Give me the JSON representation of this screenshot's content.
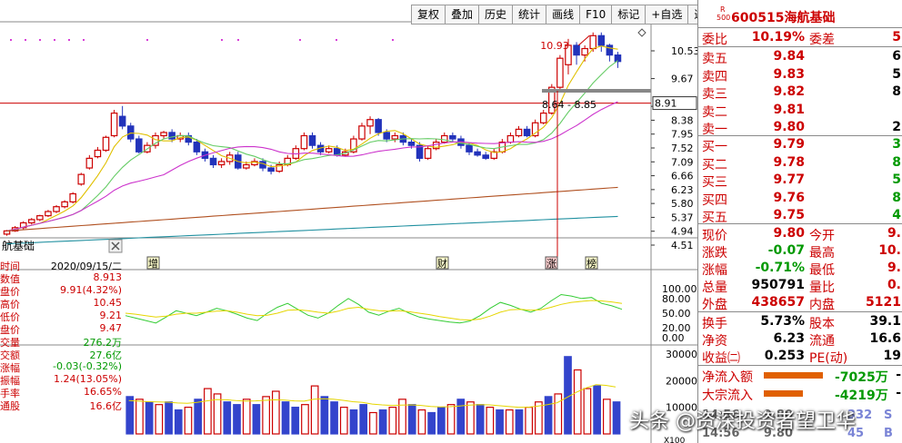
{
  "toolbar": {
    "buttons": [
      "复权",
      "叠加",
      "历史",
      "统计",
      "画线",
      "F10",
      "标记",
      "+自选",
      "返回"
    ]
  },
  "stock": {
    "code": "600515",
    "name": "海航基础",
    "rs_r": "R",
    "rs_num": "500",
    "chart_label": "航基础"
  },
  "chart_data": [
    {
      "type": "candlestick",
      "title": "",
      "y_ticks": [
        "10.53",
        "9.67",
        "8.81",
        "8.38",
        "7.95",
        "7.52",
        "7.09",
        "6.66",
        "6.23",
        "5.80",
        "5.37",
        "4.94",
        "4.51"
      ],
      "current_price_label": "8.91",
      "annotation_high": "10.93",
      "annotation_range": "8.64 - 8.85",
      "event_tags": [
        "增",
        "财",
        "涨",
        "榜"
      ],
      "candles": [
        [
          4.85,
          4.95,
          4.8,
          4.98
        ],
        [
          4.95,
          5.05,
          4.92,
          5.1
        ],
        [
          5.05,
          5.2,
          5.0,
          5.25
        ],
        [
          5.2,
          5.3,
          5.15,
          5.35
        ],
        [
          5.3,
          5.42,
          5.25,
          5.45
        ],
        [
          5.42,
          5.55,
          5.38,
          5.6
        ],
        [
          5.55,
          5.7,
          5.5,
          5.75
        ],
        [
          5.7,
          5.85,
          5.65,
          5.9
        ],
        [
          5.85,
          6.1,
          5.8,
          6.15
        ],
        [
          6.4,
          6.7,
          6.35,
          6.75
        ],
        [
          6.9,
          7.2,
          6.85,
          7.3
        ],
        [
          7.25,
          7.45,
          7.2,
          7.55
        ],
        [
          7.45,
          7.85,
          7.4,
          7.9
        ],
        [
          7.9,
          8.6,
          7.85,
          8.7
        ],
        [
          8.5,
          8.2,
          8.1,
          8.82
        ],
        [
          8.2,
          7.8,
          7.7,
          8.3
        ],
        [
          7.8,
          7.4,
          7.35,
          7.9
        ],
        [
          7.4,
          7.6,
          7.35,
          7.7
        ],
        [
          7.6,
          7.9,
          7.5,
          8.0
        ],
        [
          7.9,
          8.0,
          7.8,
          8.05
        ],
        [
          8.0,
          7.8,
          7.7,
          8.1
        ],
        [
          7.8,
          7.9,
          7.7,
          8.0
        ],
        [
          7.9,
          7.7,
          7.6,
          8.0
        ],
        [
          7.7,
          7.4,
          7.3,
          7.8
        ],
        [
          7.4,
          7.2,
          7.1,
          7.5
        ],
        [
          7.2,
          7.0,
          6.9,
          7.3
        ],
        [
          7.0,
          7.1,
          6.9,
          7.2
        ],
        [
          7.1,
          7.3,
          7.0,
          7.4
        ],
        [
          7.3,
          6.9,
          6.85,
          7.4
        ],
        [
          6.9,
          7.0,
          6.85,
          7.1
        ],
        [
          7.0,
          7.1,
          6.95,
          7.2
        ],
        [
          7.1,
          6.9,
          6.8,
          7.2
        ],
        [
          6.9,
          6.8,
          6.7,
          7.0
        ],
        [
          6.8,
          7.0,
          6.75,
          7.1
        ],
        [
          7.0,
          7.2,
          6.95,
          7.3
        ],
        [
          7.2,
          7.5,
          7.15,
          7.6
        ],
        [
          7.5,
          7.9,
          7.45,
          8.0
        ],
        [
          7.9,
          7.6,
          7.5,
          8.0
        ],
        [
          7.6,
          7.4,
          7.3,
          7.7
        ],
        [
          7.4,
          7.5,
          7.35,
          7.6
        ],
        [
          7.5,
          7.3,
          7.25,
          7.6
        ],
        [
          7.3,
          7.4,
          7.25,
          7.5
        ],
        [
          7.4,
          7.8,
          7.35,
          7.9
        ],
        [
          7.8,
          8.2,
          7.75,
          8.3
        ],
        [
          8.2,
          8.4,
          7.95,
          8.5
        ],
        [
          8.4,
          8.0,
          7.9,
          8.45
        ],
        [
          8.0,
          7.8,
          7.7,
          8.1
        ],
        [
          7.8,
          7.9,
          7.7,
          8.0
        ],
        [
          7.9,
          7.7,
          7.6,
          8.0
        ],
        [
          7.7,
          7.6,
          7.5,
          7.8
        ],
        [
          7.6,
          7.2,
          7.1,
          7.7
        ],
        [
          7.2,
          7.5,
          7.15,
          7.6
        ],
        [
          7.5,
          7.7,
          7.45,
          7.8
        ],
        [
          7.7,
          7.9,
          7.65,
          8.0
        ],
        [
          7.9,
          7.8,
          7.7,
          8.0
        ],
        [
          7.8,
          7.6,
          7.5,
          7.9
        ],
        [
          7.6,
          7.4,
          7.3,
          7.7
        ],
        [
          7.4,
          7.3,
          7.25,
          7.5
        ],
        [
          7.3,
          7.2,
          7.15,
          7.4
        ],
        [
          7.2,
          7.4,
          7.15,
          7.5
        ],
        [
          7.4,
          7.7,
          7.35,
          7.8
        ],
        [
          7.7,
          7.9,
          7.65,
          8.0
        ],
        [
          7.9,
          8.1,
          7.85,
          8.2
        ],
        [
          8.1,
          7.9,
          7.85,
          8.2
        ],
        [
          7.9,
          8.3,
          7.85,
          8.4
        ],
        [
          8.3,
          8.6,
          8.25,
          8.7
        ],
        [
          8.6,
          9.4,
          8.55,
          9.5
        ],
        [
          9.4,
          10.3,
          9.35,
          10.4
        ],
        [
          10.1,
          10.7,
          9.8,
          10.9
        ],
        [
          10.7,
          10.4,
          10.1,
          10.8
        ],
        [
          10.4,
          10.6,
          10.2,
          10.7
        ],
        [
          10.6,
          11.0,
          10.5,
          11.1
        ],
        [
          11.0,
          10.7,
          10.5,
          11.1
        ],
        [
          10.7,
          10.4,
          10.2,
          10.75
        ],
        [
          10.4,
          10.2,
          10.0,
          10.5
        ]
      ],
      "ma": [
        {
          "name": "MA5",
          "color": "#e0c000"
        },
        {
          "name": "MA10",
          "color": "#66cc66"
        },
        {
          "name": "MA20",
          "color": "#cc33cc"
        },
        {
          "name": "MA60",
          "color": "#b05020"
        },
        {
          "name": "MA120",
          "color": "#2090a0"
        }
      ]
    },
    {
      "type": "line",
      "title": "",
      "y_ticks": [
        "100.00",
        "80.00",
        "50.00",
        "20.00",
        "0.00"
      ],
      "series": [
        {
          "color": "#33cc33",
          "values": [
            45,
            40,
            35,
            30,
            42,
            55,
            50,
            45,
            52,
            60,
            55,
            48,
            40,
            35,
            50,
            62,
            70,
            58,
            46,
            40,
            50,
            66,
            80,
            68,
            52,
            46,
            54,
            60,
            50,
            42,
            38,
            35,
            32,
            30,
            34,
            45,
            60,
            72,
            66,
            58,
            52,
            60,
            75,
            88,
            85,
            80,
            82,
            70,
            65,
            58
          ]
        },
        {
          "color": "#e6d600",
          "values": [
            50,
            48,
            45,
            42,
            44,
            48,
            50,
            50,
            52,
            54,
            55,
            52,
            48,
            45,
            46,
            50,
            56,
            57,
            55,
            52,
            50,
            54,
            60,
            62,
            58,
            55,
            54,
            55,
            53,
            50,
            47,
            43,
            40,
            37,
            36,
            38,
            44,
            52,
            57,
            58,
            56,
            57,
            62,
            68,
            72,
            74,
            76,
            75,
            73,
            70
          ]
        }
      ]
    },
    {
      "type": "bar",
      "title": "",
      "y_ticks": [
        "30000",
        "20000",
        "10000"
      ],
      "values": [
        14000,
        13000,
        12000,
        11000,
        12000,
        9000,
        10000,
        13000,
        17000,
        15000,
        12000,
        11000,
        13000,
        11000,
        14000,
        16000,
        12000,
        10000,
        11000,
        18000,
        14000,
        12000,
        10000,
        9000,
        11000,
        8000,
        9000,
        10000,
        13000,
        11000,
        9000,
        8000,
        10000,
        11000,
        13000,
        12000,
        11000,
        10000,
        9000,
        9000,
        9000,
        10000,
        12000,
        14000,
        15000,
        29000,
        24000,
        17000,
        18000,
        13000,
        12000
      ],
      "colors": [
        "#3344cc",
        "#cc0000",
        "#3344cc",
        "#cc0000",
        "#3344cc",
        "#3344cc",
        "#cc0000",
        "#3344cc",
        "#cc0000",
        "#cc0000",
        "#3344cc",
        "#3344cc",
        "#cc0000",
        "#3344cc",
        "#cc0000",
        "#cc0000",
        "#3344cc",
        "#3344cc",
        "#cc0000",
        "#cc0000",
        "#3344cc",
        "#3344cc",
        "#cc0000",
        "#3344cc",
        "#3344cc",
        "#cc0000",
        "#3344cc",
        "#cc0000",
        "#cc0000",
        "#3344cc",
        "#cc0000",
        "#3344cc",
        "#3344cc",
        "#cc0000",
        "#3344cc",
        "#cc0000",
        "#3344cc",
        "#cc0000",
        "#3344cc",
        "#cc0000",
        "#3344cc",
        "#cc0000",
        "#cc0000",
        "#3344cc",
        "#cc0000",
        "#3344cc",
        "#cc0000",
        "#cc0000",
        "#3344cc",
        "#cc0000",
        "#3344cc"
      ],
      "vol_ma_values": [
        12500,
        12300,
        12100,
        12000,
        11900,
        11600,
        11500,
        11800,
        12400,
        12900,
        12800,
        12500,
        12300,
        12400,
        12600,
        12800,
        12700,
        12400,
        12300,
        13000,
        13200,
        13000,
        12600,
        12100,
        11800,
        11200,
        10900,
        10700,
        10800,
        10900,
        10700,
        10300,
        10100,
        10200,
        10500,
        10800,
        11000,
        10900,
        10600,
        10300,
        10000,
        10000,
        10400,
        11000,
        11700,
        13700,
        15700,
        17300,
        18500,
        18200,
        17600
      ],
      "vol_ma_color": "#e6d600"
    }
  ],
  "info_panel": {
    "close_icon": "close-icon",
    "rows": [
      {
        "k": "时间",
        "v": "2020/09/15/二",
        "c": "#000"
      },
      {
        "k": "数值",
        "v": "8.913",
        "c": "#cc0000"
      },
      {
        "k": "盘价",
        "v": "9.91(4.32%)",
        "c": "#cc0000"
      },
      {
        "k": "高价",
        "v": "10.45",
        "c": "#cc0000"
      },
      {
        "k": "低价",
        "v": "9.21",
        "c": "#cc0000"
      },
      {
        "k": "盘价",
        "v": "9.47",
        "c": "#cc0000"
      },
      {
        "k": "交量",
        "v": "276.2万",
        "c": "#009900"
      },
      {
        "k": "交额",
        "v": "27.6亿",
        "c": "#009900"
      },
      {
        "k": "涨幅",
        "v": "-0.03(-0.32%)",
        "c": "#009900"
      },
      {
        "k": "振幅",
        "v": "1.24(13.05%)",
        "c": "#cc0000"
      },
      {
        "k": "手率",
        "v": "16.65%",
        "c": "#cc0000"
      },
      {
        "k": "通股",
        "v": "16.6亿",
        "c": "#cc0000"
      }
    ]
  },
  "quote": {
    "weibi_label": "委比",
    "weibi": "10.19%",
    "weicha_label": "委差",
    "weicha": "5",
    "asks": [
      {
        "label": "卖五",
        "price": "9.84",
        "vol": "6"
      },
      {
        "label": "卖四",
        "price": "9.83",
        "vol": "5"
      },
      {
        "label": "卖三",
        "price": "9.82",
        "vol": "8"
      },
      {
        "label": "卖二",
        "price": "9.81",
        "vol": ""
      },
      {
        "label": "卖一",
        "price": "9.80",
        "vol": "2"
      }
    ],
    "bids": [
      {
        "label": "买一",
        "price": "9.79",
        "vol": "3"
      },
      {
        "label": "买二",
        "price": "9.78",
        "vol": "8"
      },
      {
        "label": "买三",
        "price": "9.77",
        "vol": "5"
      },
      {
        "label": "买四",
        "price": "9.76",
        "vol": "8"
      },
      {
        "label": "买五",
        "price": "9.75",
        "vol": "4"
      }
    ],
    "stats": [
      {
        "l": "现价",
        "v": "9.80",
        "vc": "red",
        "l2": "今开",
        "v2": "9."
      },
      {
        "l": "涨跌",
        "v": "-0.07",
        "vc": "green",
        "l2": "最高",
        "v2": "10."
      },
      {
        "l": "涨幅",
        "v": "-0.71%",
        "vc": "green",
        "l2": "最低",
        "v2": "9."
      },
      {
        "l": "总量",
        "v": "950791",
        "vc": "blk",
        "l2": "量比",
        "v2": "0."
      },
      {
        "l": "外盘",
        "v": "438657",
        "vc": "red",
        "l2": "内盘",
        "v2": "5121"
      }
    ],
    "stats2": [
      {
        "l": "换手",
        "v": "5.73%",
        "vc": "blk",
        "l2": "股本",
        "v2": "39.1"
      },
      {
        "l": "净资",
        "v": "6.23",
        "vc": "blk",
        "l2": "流通",
        "v2": "16.6"
      },
      {
        "l": "收益㈡",
        "v": "0.253",
        "vc": "blk",
        "l2": "PE(动)",
        "v2": "19"
      }
    ],
    "flows": [
      {
        "l": "净流入额",
        "v": "-7025万",
        "v2": "-",
        "bar_frac": 0.72
      },
      {
        "l": "大宗流入",
        "v": "-4219万",
        "v2": "-",
        "bar_frac": 0.48
      }
    ],
    "bottom_partial": [
      {
        "l": "14:56",
        "v": "9.80",
        "v2": "S"
      },
      {
        "l": "14:56",
        "v": "9.80",
        "v2": "B"
      }
    ],
    "bottom_nums": [
      "332",
      "45"
    ]
  },
  "watermark": "头条 @资深投资者望卫华",
  "vol_axis_label": "X100"
}
